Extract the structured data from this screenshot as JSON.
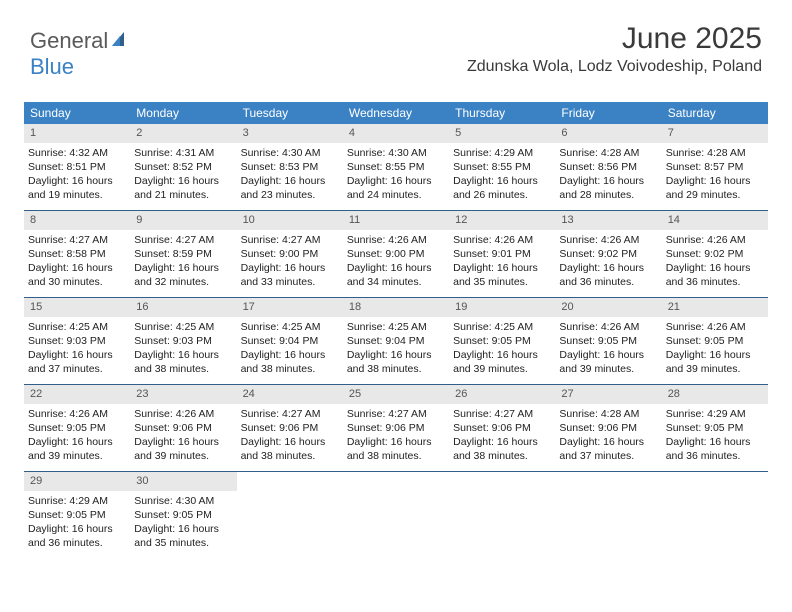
{
  "brand": {
    "line1": "General",
    "line2": "Blue"
  },
  "colors": {
    "header_bg": "#3b82c4",
    "header_text": "#ffffff",
    "week_divider": "#2f5f8a",
    "daynum_bg": "#e8e8e8",
    "daynum_text": "#555555",
    "body_text": "#222222",
    "title_text": "#3a3a3a",
    "page_bg": "#ffffff",
    "brand_gray": "#5a5a5a",
    "brand_blue": "#3b82c4"
  },
  "title": "June 2025",
  "location": "Zdunska Wola, Lodz Voivodeship, Poland",
  "day_headers": [
    "Sunday",
    "Monday",
    "Tuesday",
    "Wednesday",
    "Thursday",
    "Friday",
    "Saturday"
  ],
  "days": [
    {
      "n": "1",
      "sunrise": "Sunrise: 4:32 AM",
      "sunset": "Sunset: 8:51 PM",
      "daylight": "Daylight: 16 hours and 19 minutes."
    },
    {
      "n": "2",
      "sunrise": "Sunrise: 4:31 AM",
      "sunset": "Sunset: 8:52 PM",
      "daylight": "Daylight: 16 hours and 21 minutes."
    },
    {
      "n": "3",
      "sunrise": "Sunrise: 4:30 AM",
      "sunset": "Sunset: 8:53 PM",
      "daylight": "Daylight: 16 hours and 23 minutes."
    },
    {
      "n": "4",
      "sunrise": "Sunrise: 4:30 AM",
      "sunset": "Sunset: 8:55 PM",
      "daylight": "Daylight: 16 hours and 24 minutes."
    },
    {
      "n": "5",
      "sunrise": "Sunrise: 4:29 AM",
      "sunset": "Sunset: 8:55 PM",
      "daylight": "Daylight: 16 hours and 26 minutes."
    },
    {
      "n": "6",
      "sunrise": "Sunrise: 4:28 AM",
      "sunset": "Sunset: 8:56 PM",
      "daylight": "Daylight: 16 hours and 28 minutes."
    },
    {
      "n": "7",
      "sunrise": "Sunrise: 4:28 AM",
      "sunset": "Sunset: 8:57 PM",
      "daylight": "Daylight: 16 hours and 29 minutes."
    },
    {
      "n": "8",
      "sunrise": "Sunrise: 4:27 AM",
      "sunset": "Sunset: 8:58 PM",
      "daylight": "Daylight: 16 hours and 30 minutes."
    },
    {
      "n": "9",
      "sunrise": "Sunrise: 4:27 AM",
      "sunset": "Sunset: 8:59 PM",
      "daylight": "Daylight: 16 hours and 32 minutes."
    },
    {
      "n": "10",
      "sunrise": "Sunrise: 4:27 AM",
      "sunset": "Sunset: 9:00 PM",
      "daylight": "Daylight: 16 hours and 33 minutes."
    },
    {
      "n": "11",
      "sunrise": "Sunrise: 4:26 AM",
      "sunset": "Sunset: 9:00 PM",
      "daylight": "Daylight: 16 hours and 34 minutes."
    },
    {
      "n": "12",
      "sunrise": "Sunrise: 4:26 AM",
      "sunset": "Sunset: 9:01 PM",
      "daylight": "Daylight: 16 hours and 35 minutes."
    },
    {
      "n": "13",
      "sunrise": "Sunrise: 4:26 AM",
      "sunset": "Sunset: 9:02 PM",
      "daylight": "Daylight: 16 hours and 36 minutes."
    },
    {
      "n": "14",
      "sunrise": "Sunrise: 4:26 AM",
      "sunset": "Sunset: 9:02 PM",
      "daylight": "Daylight: 16 hours and 36 minutes."
    },
    {
      "n": "15",
      "sunrise": "Sunrise: 4:25 AM",
      "sunset": "Sunset: 9:03 PM",
      "daylight": "Daylight: 16 hours and 37 minutes."
    },
    {
      "n": "16",
      "sunrise": "Sunrise: 4:25 AM",
      "sunset": "Sunset: 9:03 PM",
      "daylight": "Daylight: 16 hours and 38 minutes."
    },
    {
      "n": "17",
      "sunrise": "Sunrise: 4:25 AM",
      "sunset": "Sunset: 9:04 PM",
      "daylight": "Daylight: 16 hours and 38 minutes."
    },
    {
      "n": "18",
      "sunrise": "Sunrise: 4:25 AM",
      "sunset": "Sunset: 9:04 PM",
      "daylight": "Daylight: 16 hours and 38 minutes."
    },
    {
      "n": "19",
      "sunrise": "Sunrise: 4:25 AM",
      "sunset": "Sunset: 9:05 PM",
      "daylight": "Daylight: 16 hours and 39 minutes."
    },
    {
      "n": "20",
      "sunrise": "Sunrise: 4:26 AM",
      "sunset": "Sunset: 9:05 PM",
      "daylight": "Daylight: 16 hours and 39 minutes."
    },
    {
      "n": "21",
      "sunrise": "Sunrise: 4:26 AM",
      "sunset": "Sunset: 9:05 PM",
      "daylight": "Daylight: 16 hours and 39 minutes."
    },
    {
      "n": "22",
      "sunrise": "Sunrise: 4:26 AM",
      "sunset": "Sunset: 9:05 PM",
      "daylight": "Daylight: 16 hours and 39 minutes."
    },
    {
      "n": "23",
      "sunrise": "Sunrise: 4:26 AM",
      "sunset": "Sunset: 9:06 PM",
      "daylight": "Daylight: 16 hours and 39 minutes."
    },
    {
      "n": "24",
      "sunrise": "Sunrise: 4:27 AM",
      "sunset": "Sunset: 9:06 PM",
      "daylight": "Daylight: 16 hours and 38 minutes."
    },
    {
      "n": "25",
      "sunrise": "Sunrise: 4:27 AM",
      "sunset": "Sunset: 9:06 PM",
      "daylight": "Daylight: 16 hours and 38 minutes."
    },
    {
      "n": "26",
      "sunrise": "Sunrise: 4:27 AM",
      "sunset": "Sunset: 9:06 PM",
      "daylight": "Daylight: 16 hours and 38 minutes."
    },
    {
      "n": "27",
      "sunrise": "Sunrise: 4:28 AM",
      "sunset": "Sunset: 9:06 PM",
      "daylight": "Daylight: 16 hours and 37 minutes."
    },
    {
      "n": "28",
      "sunrise": "Sunrise: 4:29 AM",
      "sunset": "Sunset: 9:05 PM",
      "daylight": "Daylight: 16 hours and 36 minutes."
    },
    {
      "n": "29",
      "sunrise": "Sunrise: 4:29 AM",
      "sunset": "Sunset: 9:05 PM",
      "daylight": "Daylight: 16 hours and 36 minutes."
    },
    {
      "n": "30",
      "sunrise": "Sunrise: 4:30 AM",
      "sunset": "Sunset: 9:05 PM",
      "daylight": "Daylight: 16 hours and 35 minutes."
    }
  ],
  "layout": {
    "first_weekday_offset": 0,
    "total_cells": 35
  }
}
